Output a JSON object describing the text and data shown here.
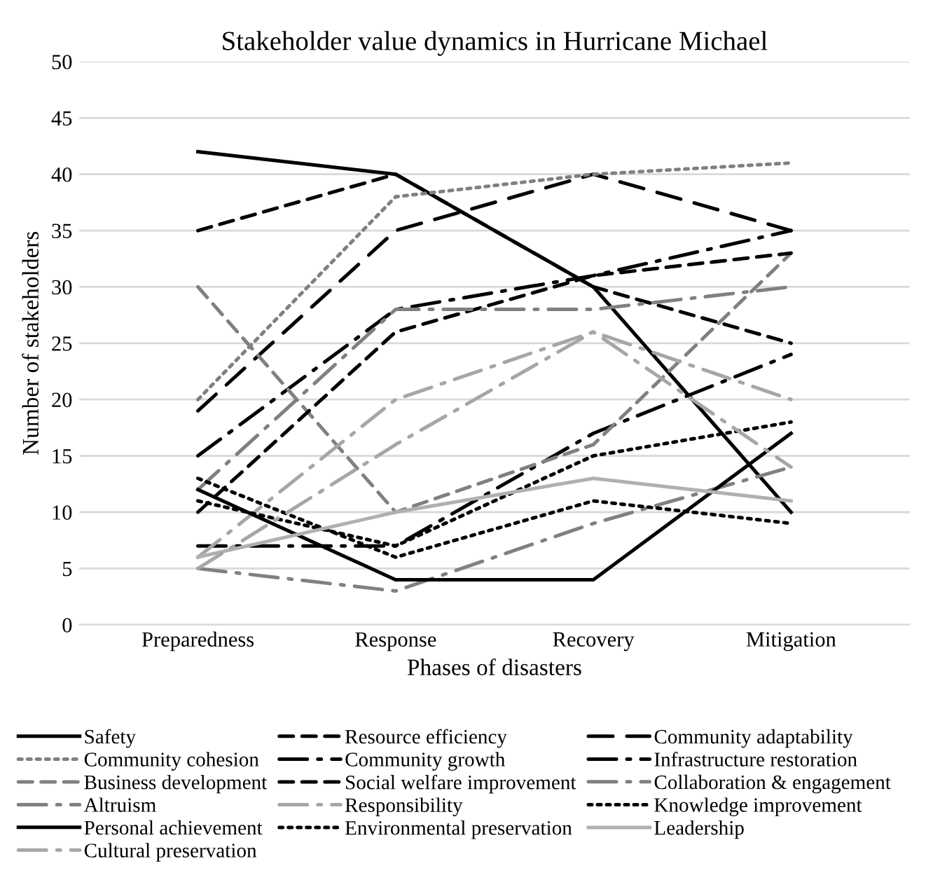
{
  "chart_data": {
    "type": "line",
    "title": "Stakeholder value dynamics in Hurricane Michael",
    "xlabel": "Phases of disasters",
    "ylabel": "Number of stakeholders",
    "categories": [
      "Preparedness",
      "Response",
      "Recovery",
      "Mitigation"
    ],
    "ylim": [
      0,
      50
    ],
    "yticks": [
      0,
      5,
      10,
      15,
      20,
      25,
      30,
      35,
      40,
      45,
      50
    ],
    "grid": "y",
    "legend": "bottom",
    "marker": "none",
    "series": [
      {
        "name": "Safety",
        "color": "#000000",
        "line_style": "solid",
        "values": [
          42,
          40,
          30,
          10
        ]
      },
      {
        "name": "Resource efficiency",
        "color": "#000000",
        "line_style": "dashed",
        "values": [
          35,
          40,
          30,
          25
        ]
      },
      {
        "name": "Community adaptability",
        "color": "#000000",
        "line_style": "longdash",
        "values": [
          19,
          35,
          40,
          35
        ]
      },
      {
        "name": "Community cohesion",
        "color": "#808080",
        "line_style": "dotted",
        "values": [
          20,
          38,
          40,
          41
        ]
      },
      {
        "name": "Community growth",
        "color": "#000000",
        "line_style": "dashdot",
        "values": [
          15,
          28,
          31,
          35
        ]
      },
      {
        "name": "Infrastructure restoration",
        "color": "#000000",
        "line_style": "dashdot",
        "values": [
          7,
          7,
          17,
          24
        ]
      },
      {
        "name": "Business development",
        "color": "#808080",
        "line_style": "dashed",
        "values": [
          30,
          10,
          16,
          33
        ]
      },
      {
        "name": "Social welfare improvement",
        "color": "#000000",
        "line_style": "dashed",
        "values": [
          10,
          26,
          31,
          33
        ]
      },
      {
        "name": "Collaboration & engagement",
        "color": "#808080",
        "line_style": "dashdot",
        "values": [
          12,
          28,
          28,
          30
        ]
      },
      {
        "name": "Altruism",
        "color": "#808080",
        "line_style": "dashdot",
        "values": [
          5,
          3,
          9,
          14
        ]
      },
      {
        "name": "Responsibility",
        "color": "#a6a6a6",
        "line_style": "dashdot",
        "values": [
          6,
          20,
          26,
          20
        ]
      },
      {
        "name": "Knowledge improvement",
        "color": "#000000",
        "line_style": "dotted",
        "values": [
          11,
          7,
          15,
          18
        ]
      },
      {
        "name": "Personal achievement",
        "color": "#000000",
        "line_style": "solid",
        "values": [
          12,
          4,
          4,
          17
        ]
      },
      {
        "name": "Environmental preservation",
        "color": "#000000",
        "line_style": "dotted",
        "values": [
          13,
          6,
          11,
          9
        ]
      },
      {
        "name": "Leadership",
        "color": "#b0b0b0",
        "line_style": "solid",
        "values": [
          6,
          10,
          13,
          11
        ]
      },
      {
        "name": "Cultural preservation",
        "color": "#a6a6a6",
        "line_style": "dashdot",
        "values": [
          5,
          16,
          26,
          14
        ]
      }
    ]
  }
}
